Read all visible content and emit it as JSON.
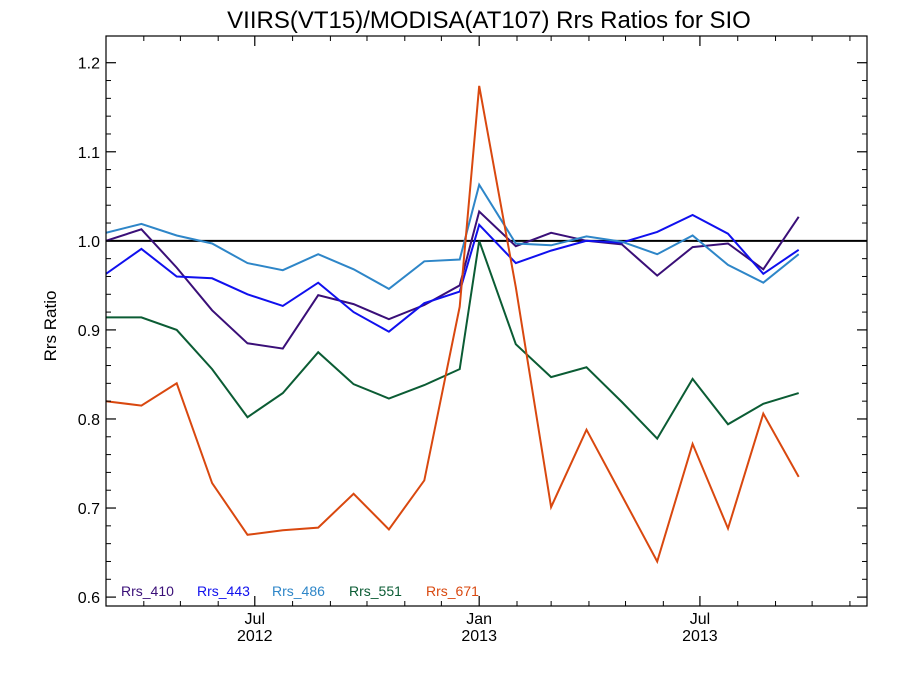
{
  "chart_data": {
    "type": "line",
    "title": "VIIRS(VT15)/MODISA(AT107)  Rrs Ratios for SIO",
    "ylabel": "Rrs Ratio",
    "xlabel": "",
    "ylim": [
      0.59,
      1.23
    ],
    "xlim": [
      "2012-03-01",
      "2013-11-15"
    ],
    "yticks": [
      0.6,
      0.7,
      0.8,
      0.9,
      1.0,
      1.1,
      1.2
    ],
    "ytick_labels": [
      "0.6",
      "0.7",
      "0.8",
      "0.9",
      "1.0",
      "1.1",
      "1.2"
    ],
    "xticks": [
      {
        "date": "2012-07-01",
        "label_top": "Jul",
        "label_bottom": "2012"
      },
      {
        "date": "2013-01-01",
        "label_top": "Jan",
        "label_bottom": "2013"
      },
      {
        "date": "2013-07-01",
        "label_top": "Jul",
        "label_bottom": "2013"
      }
    ],
    "minor_xticks": [
      "2012-04-01",
      "2012-05-01",
      "2012-06-01",
      "2012-08-01",
      "2012-09-01",
      "2012-10-01",
      "2012-11-01",
      "2012-12-01",
      "2013-02-01",
      "2013-03-01",
      "2013-04-01",
      "2013-05-01",
      "2013-06-01",
      "2013-08-01",
      "2013-09-01",
      "2013-10-01",
      "2013-11-01"
    ],
    "reference_line": {
      "y": 1.0,
      "color": "#000000"
    },
    "grid": false,
    "legend_position": "bottom-left",
    "x": [
      "2012-03-01",
      "2012-03-30",
      "2012-04-28",
      "2012-05-27",
      "2012-06-25",
      "2012-07-24",
      "2012-08-22",
      "2012-09-20",
      "2012-10-19",
      "2012-11-17",
      "2012-12-16",
      "2013-01-01",
      "2013-01-31",
      "2013-03-01",
      "2013-03-30",
      "2013-04-28",
      "2013-05-27",
      "2013-06-25",
      "2013-07-24",
      "2013-08-22",
      "2013-09-20",
      "2013-10-19",
      "2013-11-15"
    ],
    "series": [
      {
        "name": "Rrs_410",
        "color": "#3a0f78",
        "values": [
          1.0,
          1.013,
          0.97,
          0.922,
          0.885,
          0.879,
          0.939,
          0.929,
          0.912,
          0.928,
          0.95,
          1.033,
          0.994,
          1.009,
          1.0,
          0.996,
          0.961,
          0.993,
          0.997,
          0.968,
          1.027,
          null,
          null
        ]
      },
      {
        "name": "Rrs_443",
        "color": "#1010ee",
        "values": [
          0.963,
          0.991,
          0.96,
          0.958,
          0.94,
          0.927,
          0.953,
          0.92,
          0.898,
          0.93,
          0.943,
          1.018,
          0.975,
          0.989,
          1.0,
          0.998,
          1.01,
          1.029,
          1.008,
          0.963,
          0.99,
          null,
          null
        ]
      },
      {
        "name": "Rrs_486",
        "color": "#2e86c8",
        "values": [
          1.009,
          1.019,
          1.006,
          0.997,
          0.975,
          0.967,
          0.985,
          0.968,
          0.946,
          0.977,
          0.979,
          1.063,
          0.997,
          0.995,
          1.005,
          0.999,
          0.985,
          1.006,
          0.973,
          0.953,
          0.985,
          null,
          null
        ]
      },
      {
        "name": "Rrs_551",
        "color": "#0b5c34",
        "values": [
          0.914,
          0.914,
          0.9,
          0.856,
          0.802,
          0.829,
          0.875,
          0.839,
          0.823,
          0.838,
          0.856,
          1.0,
          0.884,
          0.847,
          0.858,
          0.819,
          0.778,
          0.845,
          0.794,
          0.817,
          0.829,
          null,
          null
        ]
      },
      {
        "name": "Rrs_671",
        "color": "#d9480f",
        "values": [
          0.82,
          0.815,
          0.84,
          0.728,
          0.67,
          0.675,
          0.678,
          0.716,
          0.676,
          0.731,
          0.926,
          1.174,
          0.948,
          0.701,
          0.788,
          0.714,
          0.64,
          0.772,
          0.677,
          0.806,
          0.735,
          null,
          null
        ]
      }
    ]
  }
}
